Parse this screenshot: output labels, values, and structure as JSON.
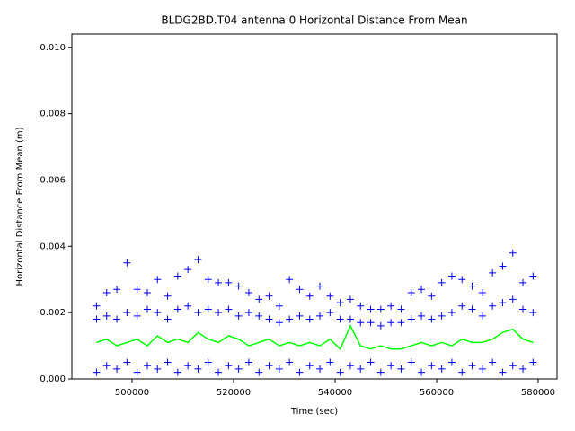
{
  "chart_data": {
    "type": "scatter",
    "title": "BLDG2BD.T04 antenna 0 Horizontal Distance From Mean",
    "x_label": "Time (sec)",
    "y_label": "Horizontal Distance From Mean (m)",
    "x": [
      493000,
      495000,
      497000,
      499000,
      501000,
      503000,
      505000,
      507000,
      509000,
      511000,
      513000,
      515000,
      517000,
      519000,
      521000,
      523000,
      525000,
      527000,
      529000,
      531000,
      533000,
      535000,
      537000,
      539000,
      541000,
      543000,
      545000,
      547000,
      549000,
      551000,
      553000,
      555000,
      557000,
      559000,
      561000,
      563000,
      565000,
      567000,
      569000,
      571000,
      573000,
      575000,
      577000,
      579000
    ],
    "series": [
      {
        "color": "#0000ff",
        "marker": "+",
        "values": [
          0.0022,
          0.0026,
          0.0027,
          0.0035,
          0.0027,
          0.0026,
          0.003,
          0.0025,
          0.0031,
          0.0033,
          0.0036,
          0.003,
          0.0029,
          0.0029,
          0.0028,
          0.0026,
          0.0024,
          0.0025,
          0.0022,
          0.003,
          0.0027,
          0.0025,
          0.0028,
          0.0025,
          0.0023,
          0.0024,
          0.0022,
          0.0021,
          0.0021,
          0.0022,
          0.0021,
          0.0026,
          0.0027,
          0.0025,
          0.0029,
          0.0031,
          0.003,
          0.0028,
          0.0026,
          0.0032,
          0.0034,
          0.0038,
          0.0029,
          0.0031
        ]
      },
      {
        "color": "#0000ff",
        "marker": "+",
        "values": [
          0.0018,
          0.0019,
          0.0018,
          0.002,
          0.0019,
          0.0021,
          0.002,
          0.0018,
          0.0021,
          0.0022,
          0.002,
          0.0021,
          0.002,
          0.0021,
          0.0019,
          0.002,
          0.0019,
          0.0018,
          0.0017,
          0.0018,
          0.0019,
          0.0018,
          0.0019,
          0.002,
          0.0018,
          0.0018,
          0.0017,
          0.0017,
          0.0016,
          0.0017,
          0.0017,
          0.0018,
          0.0019,
          0.0018,
          0.0019,
          0.002,
          0.0022,
          0.0021,
          0.0019,
          0.0022,
          0.0023,
          0.0024,
          0.0021,
          0.002
        ]
      },
      {
        "color": "#0000ff",
        "marker": "+",
        "values": [
          0.0002,
          0.0004,
          0.0003,
          0.0005,
          0.0002,
          0.0004,
          0.0003,
          0.0005,
          0.0002,
          0.0004,
          0.0003,
          0.0005,
          0.0002,
          0.0004,
          0.0003,
          0.0005,
          0.0002,
          0.0004,
          0.0003,
          0.0005,
          0.0002,
          0.0004,
          0.0003,
          0.0005,
          0.0002,
          0.0004,
          0.0003,
          0.0005,
          0.0002,
          0.0004,
          0.0003,
          0.0005,
          0.0002,
          0.0004,
          0.0003,
          0.0005,
          0.0002,
          0.0004,
          0.0003,
          0.0005,
          0.0002,
          0.0004,
          0.0003,
          0.0005
        ]
      },
      {
        "color": "#00ff00",
        "style": "line",
        "values": [
          0.0011,
          0.0012,
          0.001,
          0.0011,
          0.0012,
          0.001,
          0.0013,
          0.0011,
          0.0012,
          0.0011,
          0.0014,
          0.0012,
          0.0011,
          0.0013,
          0.0012,
          0.001,
          0.0011,
          0.0012,
          0.001,
          0.0011,
          0.001,
          0.0011,
          0.001,
          0.0012,
          0.0009,
          0.0016,
          0.001,
          0.0009,
          0.001,
          0.0009,
          0.0009,
          0.001,
          0.0011,
          0.001,
          0.0011,
          0.001,
          0.0012,
          0.0011,
          0.0011,
          0.0012,
          0.0014,
          0.0015,
          0.0012,
          0.0011
        ]
      }
    ],
    "xlim": [
      488140,
      583720
    ],
    "xticks": [
      500000,
      520000,
      540000,
      560000,
      580000
    ],
    "ylim": [
      0,
      0.0104
    ],
    "yticks": [
      {
        "value": 0,
        "label": "0.000"
      },
      {
        "value": 0.002,
        "label": "0.002"
      },
      {
        "value": 0.004,
        "label": "0.004"
      },
      {
        "value": 0.006,
        "label": "0.006"
      },
      {
        "value": 0.008,
        "label": "0.008"
      },
      {
        "value": 0.01,
        "label": "0.010"
      }
    ]
  }
}
